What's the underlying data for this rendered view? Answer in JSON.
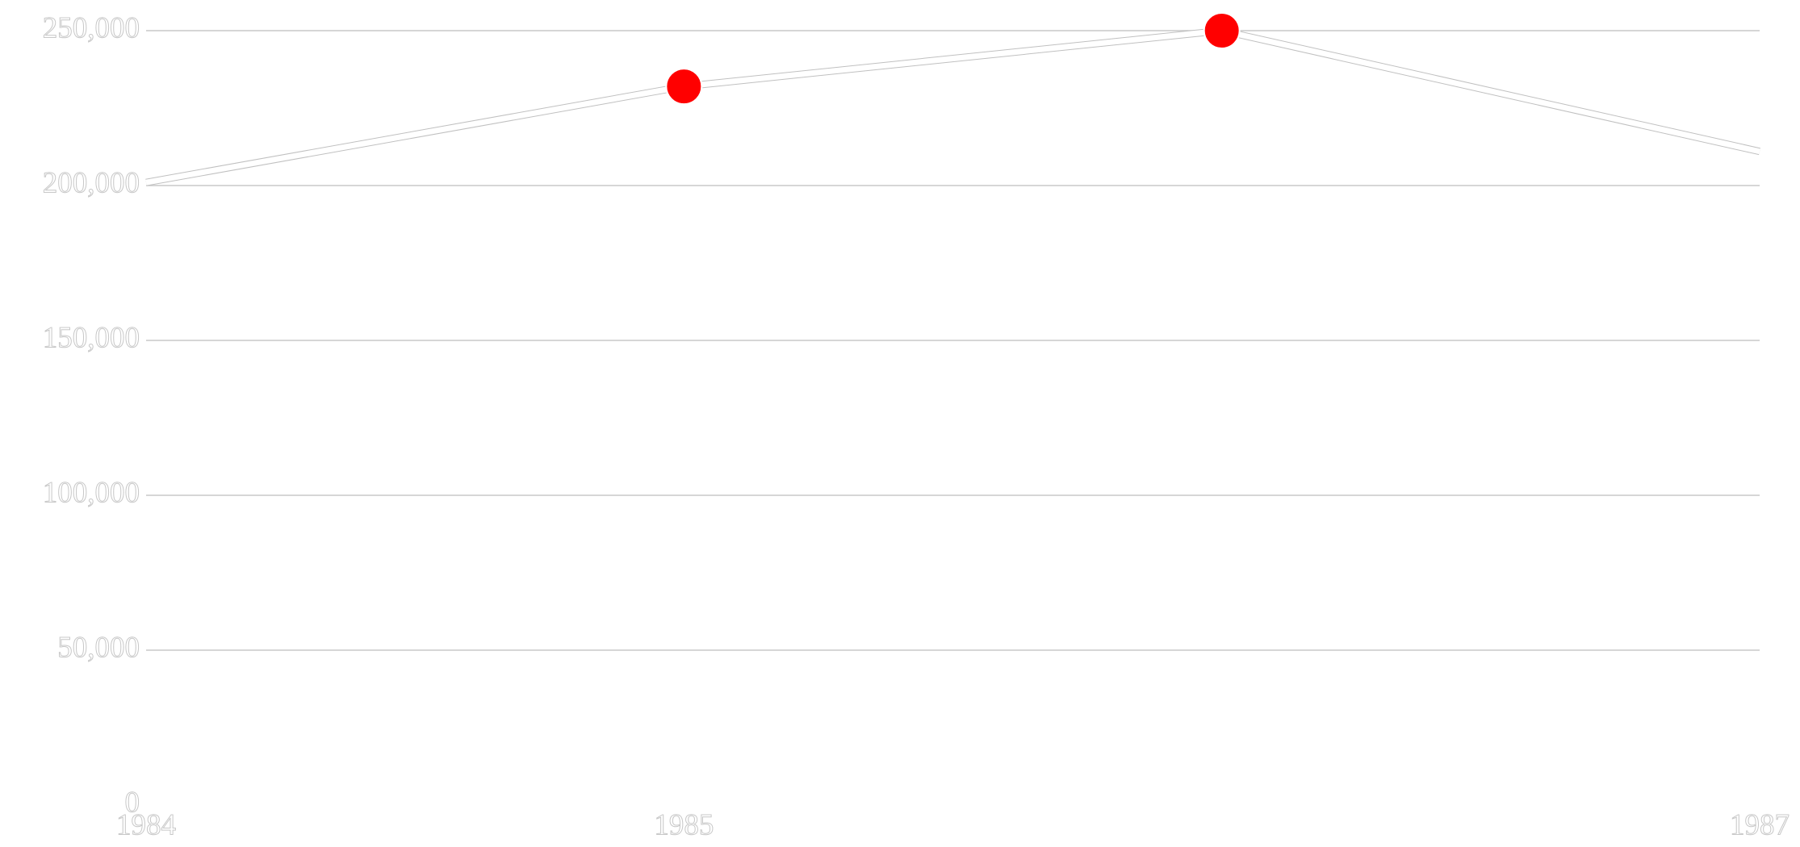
{
  "chart_data": {
    "type": "line",
    "x": [
      1984,
      1985,
      1986,
      1987
    ],
    "xlim": [
      1984,
      1987
    ],
    "xticks": [
      1984,
      1985,
      1987
    ],
    "series": [
      {
        "values": [
          201000,
          232000,
          250000,
          211000
        ],
        "color": "#ffffff",
        "outline_color": "#c0c0c0",
        "marker_color": "#ff0000",
        "markers": [
          false,
          true,
          true,
          false
        ]
      }
    ],
    "ylim": [
      0,
      250000
    ],
    "yticks": [
      0,
      {
        "value": 50000,
        "label": "50,000"
      },
      {
        "value": 100000,
        "label": "100,000"
      },
      {
        "value": 150000,
        "label": "150,000"
      },
      {
        "value": 200000,
        "label": "200,000"
      },
      {
        "value": 250000,
        "label": "250,000"
      }
    ],
    "grid": true
  }
}
